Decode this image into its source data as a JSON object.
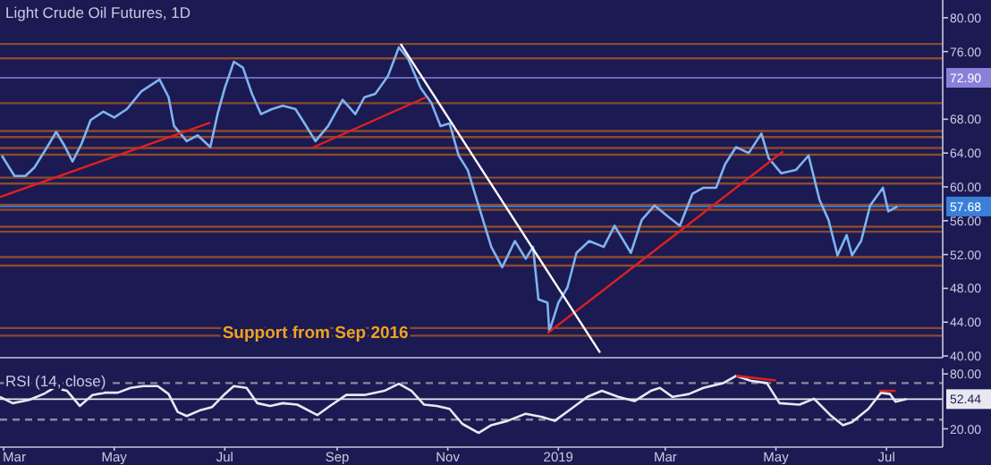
{
  "chart_data": [
    {
      "type": "line",
      "title": "Light Crude Oil Futures, 1D",
      "xlim": [
        "2018-02-27",
        "2019-08-01"
      ],
      "ylim": [
        39.8,
        82.1
      ],
      "tick_labels": "y",
      "yticks": [
        {
          "value": 40,
          "label": "40.00"
        },
        {
          "value": 44,
          "label": "44.00"
        },
        {
          "value": 48,
          "label": "48.00"
        },
        {
          "value": 52,
          "label": "52.00"
        },
        {
          "value": 56,
          "label": "56.00"
        },
        {
          "value": 60,
          "label": "60.00"
        },
        {
          "value": 64,
          "label": "64.00"
        },
        {
          "value": 68,
          "label": "68.00"
        },
        {
          "value": 76,
          "label": "76.00"
        },
        {
          "value": 80,
          "label": "80.00"
        }
      ],
      "series": [
        {
          "color": "#7fb3f0",
          "x": [
            "2018-02-28",
            "2018-03-07",
            "2018-03-13",
            "2018-03-18",
            "2018-03-25",
            "2018-03-30",
            "2018-04-04",
            "2018-04-08",
            "2018-04-13",
            "2018-04-18",
            "2018-04-25",
            "2018-05-01",
            "2018-05-08",
            "2018-05-16",
            "2018-05-26",
            "2018-05-31",
            "2018-06-03",
            "2018-06-10",
            "2018-06-16",
            "2018-06-23",
            "2018-06-27",
            "2018-07-01",
            "2018-07-06",
            "2018-07-11",
            "2018-07-16",
            "2018-07-21",
            "2018-07-27",
            "2018-08-02",
            "2018-08-09",
            "2018-08-14",
            "2018-08-20",
            "2018-08-27",
            "2018-09-04",
            "2018-09-11",
            "2018-09-16",
            "2018-09-22",
            "2018-09-29",
            "2018-10-05",
            "2018-10-10",
            "2018-10-17",
            "2018-10-23",
            "2018-10-28",
            "2018-11-02",
            "2018-11-07",
            "2018-11-12",
            "2018-11-18",
            "2018-11-25",
            "2018-12-01",
            "2018-12-08",
            "2018-12-14",
            "2018-12-18",
            "2018-12-21",
            "2018-12-26",
            "2018-12-27",
            "2019-01-01",
            "2019-01-06",
            "2019-01-11",
            "2019-01-18",
            "2019-01-26",
            "2019-02-01",
            "2019-02-10",
            "2019-02-16",
            "2019-02-23",
            "2019-03-03",
            "2019-03-09",
            "2019-03-16",
            "2019-03-22",
            "2019-03-29",
            "2019-04-03",
            "2019-04-09",
            "2019-04-16",
            "2019-04-23",
            "2019-04-27",
            "2019-05-04",
            "2019-05-12",
            "2019-05-19",
            "2019-05-25",
            "2019-05-30",
            "2019-06-04",
            "2019-06-09",
            "2019-06-12",
            "2019-06-17",
            "2019-06-22",
            "2019-06-29",
            "2019-07-02",
            "2019-07-07"
          ],
          "values": [
            63.7,
            61.3,
            61.3,
            62.3,
            64.7,
            66.5,
            64.7,
            63.0,
            65.1,
            67.9,
            68.9,
            68.2,
            69.2,
            71.3,
            72.7,
            70.6,
            67.2,
            65.4,
            66.1,
            64.7,
            68.6,
            71.7,
            74.8,
            74.1,
            71.0,
            68.6,
            69.2,
            69.6,
            69.2,
            67.5,
            65.4,
            67.2,
            70.3,
            68.6,
            70.6,
            71.0,
            73.1,
            76.5,
            75.2,
            71.7,
            69.9,
            67.2,
            67.5,
            63.7,
            62.0,
            57.8,
            52.9,
            50.5,
            53.6,
            51.5,
            52.9,
            46.7,
            46.3,
            42.9,
            46.3,
            48.1,
            52.2,
            53.6,
            52.9,
            55.4,
            52.2,
            56.1,
            57.8,
            56.4,
            55.4,
            59.2,
            59.9,
            59.9,
            62.7,
            64.7,
            64.0,
            66.3,
            63.4,
            61.6,
            62.0,
            63.7,
            58.5,
            56.1,
            51.9,
            54.3,
            51.9,
            53.6,
            57.8,
            59.9,
            57.1,
            57.68
          ]
        },
        {
          "color": "#e02020",
          "x": [
            "2018-02-27",
            "2018-06-23"
          ],
          "values": [
            58.8,
            67.6
          ]
        },
        {
          "color": "#e02020",
          "x": [
            "2018-08-18",
            "2018-10-20"
          ],
          "values": [
            64.6,
            70.6
          ]
        },
        {
          "color": "#e02020",
          "x": [
            "2018-12-26",
            "2019-05-05"
          ],
          "values": [
            42.7,
            64.2
          ]
        },
        {
          "color": "#ffffff",
          "x": [
            "2018-10-06",
            "2019-01-24"
          ],
          "values": [
            76.9,
            40.4
          ]
        }
      ],
      "ref_lines": [
        {
          "axis": "y",
          "value": 76.9,
          "color": "#8b4a2e"
        },
        {
          "axis": "y",
          "value": 75.2,
          "color": "#8b4a2e"
        },
        {
          "axis": "y",
          "value": 72.9,
          "label": "72.90",
          "color": "#8a80d8"
        },
        {
          "axis": "y",
          "value": 69.9,
          "color": "#8b4a2e"
        },
        {
          "axis": "y",
          "value": 66.6,
          "color": "#8b4a2e"
        },
        {
          "axis": "y",
          "value": 65.9,
          "color": "#8b4a2e"
        },
        {
          "axis": "y",
          "value": 64.6,
          "color": "#8b4a2e"
        },
        {
          "axis": "y",
          "value": 63.8,
          "color": "#8b4a2e"
        },
        {
          "axis": "y",
          "value": 61.1,
          "color": "#8b4a2e"
        },
        {
          "axis": "y",
          "value": 60.4,
          "color": "#8b4a2e"
        },
        {
          "axis": "y",
          "value": 57.9,
          "color": "#8b4a2e"
        },
        {
          "axis": "y",
          "value": 57.3,
          "color": "#8b4a2e"
        },
        {
          "axis": "y",
          "value": 57.68,
          "label": "57.68",
          "color": "#3a7fd8"
        },
        {
          "axis": "y",
          "value": 55.3,
          "color": "#8b4a2e"
        },
        {
          "axis": "y",
          "value": 54.7,
          "color": "#8b4a2e"
        },
        {
          "axis": "y",
          "value": 51.7,
          "color": "#8b4a2e"
        },
        {
          "axis": "y",
          "value": 50.7,
          "color": "#8b4a2e"
        },
        {
          "axis": "y",
          "value": 43.3,
          "color": "#8b4a2e"
        },
        {
          "axis": "y",
          "value": 42.4,
          "color": "#8b4a2e"
        }
      ],
      "annotations": [
        {
          "text": "Support from Sep 2016",
          "x": "2018-08-20",
          "y": 42.85
        }
      ]
    },
    {
      "type": "line",
      "title": "RSI (14, close)",
      "xlim": [
        "2018-02-27",
        "2019-08-01"
      ],
      "ylim": [
        0,
        86
      ],
      "yticks": [
        {
          "value": 20,
          "label": "20.00"
        },
        {
          "value": 80,
          "label": "80.00"
        }
      ],
      "xticks": [
        {
          "value": "2018-03-01",
          "label": "Mar"
        },
        {
          "value": "2018-05-01",
          "label": "May"
        },
        {
          "value": "2018-07-01",
          "label": "Jul"
        },
        {
          "value": "2018-09-01",
          "label": "Sep"
        },
        {
          "value": "2018-11-01",
          "label": "Nov"
        },
        {
          "value": "2019-01-01",
          "label": "2019"
        },
        {
          "value": "2019-03-01",
          "label": "Mar"
        },
        {
          "value": "2019-05-01",
          "label": "May"
        },
        {
          "value": "2019-07-01",
          "label": "Jul"
        }
      ],
      "series": [
        {
          "color": "#e8e8f0",
          "x": [
            "2018-02-27",
            "2018-03-06",
            "2018-03-15",
            "2018-03-23",
            "2018-03-29",
            "2018-04-05",
            "2018-04-12",
            "2018-04-19",
            "2018-04-26",
            "2018-05-03",
            "2018-05-10",
            "2018-05-17",
            "2018-05-25",
            "2018-05-31",
            "2018-06-05",
            "2018-06-10",
            "2018-06-17",
            "2018-06-24",
            "2018-07-01",
            "2018-07-06",
            "2018-07-13",
            "2018-07-19",
            "2018-07-26",
            "2018-08-02",
            "2018-08-10",
            "2018-08-21",
            "2018-08-28",
            "2018-09-06",
            "2018-09-16",
            "2018-09-27",
            "2018-10-05",
            "2018-10-12",
            "2018-10-19",
            "2018-10-26",
            "2018-11-02",
            "2018-11-09",
            "2018-11-18",
            "2018-11-25",
            "2018-12-04",
            "2018-12-14",
            "2018-12-23",
            "2018-12-30",
            "2019-01-08",
            "2019-01-17",
            "2019-01-25",
            "2019-02-03",
            "2019-02-12",
            "2019-02-21",
            "2019-02-26",
            "2019-03-05",
            "2019-03-14",
            "2019-03-22",
            "2019-04-02",
            "2019-04-09",
            "2019-04-17",
            "2019-04-26",
            "2019-05-03",
            "2019-05-14",
            "2019-05-22",
            "2019-05-31",
            "2019-06-07",
            "2019-06-12",
            "2019-06-21",
            "2019-06-28",
            "2019-07-03",
            "2019-07-06",
            "2019-07-12"
          ],
          "values": [
            54.9,
            48,
            51.6,
            58,
            64.8,
            61.5,
            45,
            57,
            59.5,
            59.5,
            64.8,
            66.7,
            66.7,
            58,
            38.5,
            34,
            40,
            43.8,
            58,
            66.7,
            64.8,
            48,
            45,
            48,
            46.4,
            35,
            45,
            57,
            57,
            61.5,
            69.3,
            61.5,
            46.4,
            45,
            41.8,
            25.4,
            15.6,
            24,
            28.7,
            36.5,
            33,
            28.7,
            41.8,
            54.9,
            61.5,
            54.9,
            50.3,
            61.5,
            64.8,
            54.9,
            58,
            64.8,
            70,
            77.9,
            72.6,
            70,
            48,
            46.4,
            52.9,
            35,
            24,
            27.4,
            41.8,
            59.5,
            58,
            49.7,
            52.44
          ]
        },
        {
          "color": "#e02020",
          "x": [
            "2019-04-09",
            "2019-05-01"
          ],
          "values": [
            77.9,
            72.8
          ]
        },
        {
          "color": "#e02020",
          "x": [
            "2019-06-27",
            "2019-07-06"
          ],
          "values": [
            61.5,
            61.5
          ]
        }
      ],
      "ref_lines": [
        {
          "axis": "y",
          "value": 70,
          "color": "#8a8aa0",
          "line_style": "dashed"
        },
        {
          "axis": "y",
          "value": 30,
          "color": "#8a8aa0",
          "line_style": "dashed"
        },
        {
          "axis": "y",
          "value": 52.44,
          "label": "52.44",
          "color": "#e8e8f0"
        }
      ]
    }
  ]
}
